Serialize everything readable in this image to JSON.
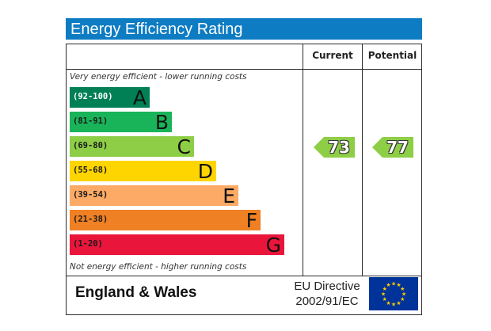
{
  "title": "Energy Efficiency Rating",
  "columns": {
    "current": "Current",
    "potential": "Potential"
  },
  "top_note": "Very energy efficient - lower running costs",
  "bottom_note": "Not energy efficient - higher running costs",
  "footer": {
    "region": "England & Wales",
    "directive_line1": "EU Directive",
    "directive_line2": "2002/91/EC"
  },
  "colors": {
    "title_bg": "#0d7cc3",
    "eu_flag": "#003399",
    "eu_stars": "#ffcc00"
  },
  "icons": {
    "flag": "eu-flag-icon"
  },
  "chart_data": {
    "type": "bar",
    "title": "Energy Efficiency Rating",
    "bands": [
      {
        "letter": "A",
        "range": "(92-100)",
        "color": "#008054"
      },
      {
        "letter": "B",
        "range": "(81-91)",
        "color": "#19b459"
      },
      {
        "letter": "C",
        "range": "(69-80)",
        "color": "#8dce46"
      },
      {
        "letter": "D",
        "range": "(55-68)",
        "color": "#ffd500"
      },
      {
        "letter": "E",
        "range": "(39-54)",
        "color": "#fcaa65"
      },
      {
        "letter": "F",
        "range": "(21-38)",
        "color": "#ef8023"
      },
      {
        "letter": "G",
        "range": "(1-20)",
        "color": "#e9153b"
      }
    ],
    "series": [
      {
        "name": "Current",
        "value": 73,
        "band": "C"
      },
      {
        "name": "Potential",
        "value": 77,
        "band": "C"
      }
    ]
  }
}
